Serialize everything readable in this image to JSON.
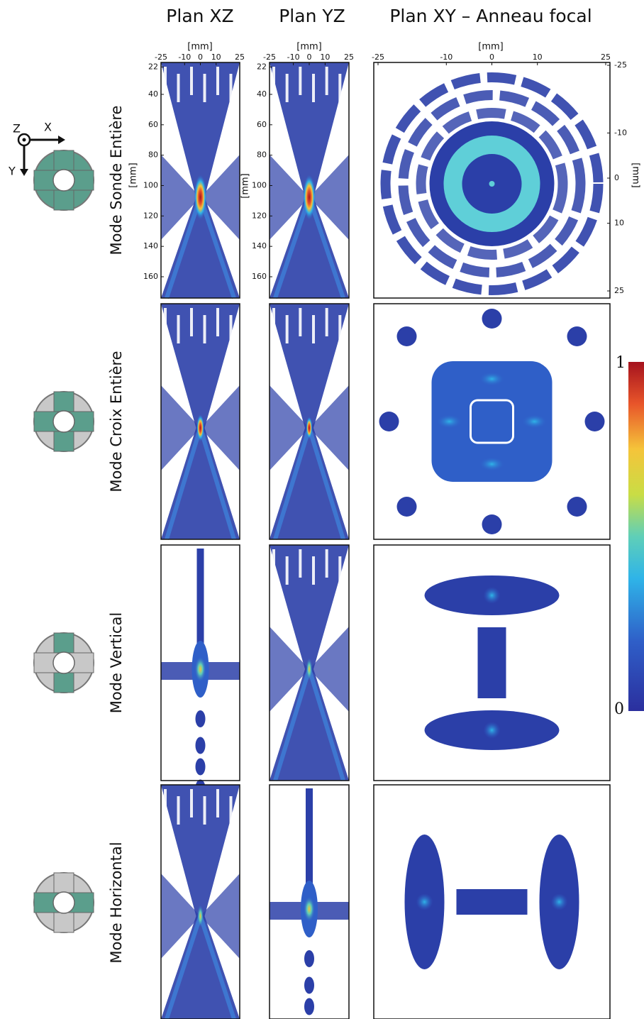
{
  "columns": [
    "Plan XZ",
    "Plan YZ",
    "Plan XY – Anneau focal"
  ],
  "rows": [
    "Mode Sonde Entière",
    "Mode Croix Entière",
    "Mode Vertical",
    "Mode Horizontal"
  ],
  "axes": {
    "x_unit": "[mm]",
    "x_ticks": [
      -25,
      -10,
      0,
      10,
      25
    ],
    "x_lim": [
      -25,
      25
    ],
    "z_unit": "[mm]",
    "z_ticks": [
      22,
      40,
      60,
      80,
      100,
      120,
      140,
      160
    ],
    "z_lim": [
      19,
      174
    ],
    "xy_x_ticks": [
      -25,
      -10,
      0,
      10,
      25
    ],
    "xy_y_unit": "[mm]",
    "xy_y_ticks": [
      -25,
      -10,
      0,
      10,
      25
    ]
  },
  "colorbar": {
    "max_label": "1",
    "min_label": "0"
  },
  "probe_axes": {
    "z": "Z",
    "x": "X",
    "y": "Y"
  }
}
